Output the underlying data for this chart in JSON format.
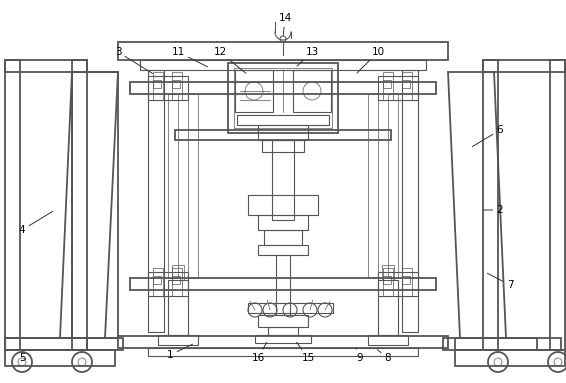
{
  "background_color": "#ffffff",
  "line_color": "#555555",
  "figsize": [
    5.66,
    3.83
  ],
  "dpi": 100,
  "annotations": [
    [
      "1",
      170,
      355,
      195,
      343
    ],
    [
      "2",
      500,
      210,
      480,
      210
    ],
    [
      "3",
      118,
      52,
      155,
      75
    ],
    [
      "4",
      22,
      230,
      55,
      210
    ],
    [
      "5",
      22,
      358,
      30,
      355
    ],
    [
      "6",
      500,
      130,
      470,
      148
    ],
    [
      "7",
      510,
      285,
      485,
      272
    ],
    [
      "8",
      388,
      358,
      375,
      348
    ],
    [
      "9",
      360,
      358,
      355,
      345
    ],
    [
      "10",
      378,
      52,
      355,
      75
    ],
    [
      "11",
      178,
      52,
      210,
      68
    ],
    [
      "12",
      220,
      52,
      248,
      75
    ],
    [
      "13",
      312,
      52,
      295,
      68
    ],
    [
      "14",
      285,
      18,
      283,
      38
    ],
    [
      "15",
      308,
      358,
      295,
      340
    ],
    [
      "16",
      258,
      358,
      268,
      340
    ]
  ]
}
